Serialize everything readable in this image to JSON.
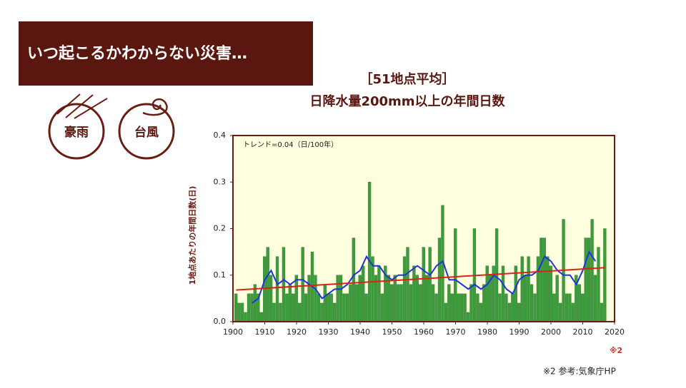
{
  "header": {
    "title": "いつ起こるかわからない災害…"
  },
  "icons": [
    {
      "label": "豪雨"
    },
    {
      "label": "台風"
    }
  ],
  "footnote": "※2  参考:気象庁HP",
  "chart_data": {
    "type": "bar",
    "title": "［51地点平均］",
    "subtitle": "日降水量200mm以上の年間日数",
    "y_label": "1地点あたりの年間日数(日)",
    "annotation": "トレンド=0.04（日/100年）",
    "note": "※2",
    "xlim": [
      1900,
      2020
    ],
    "xticks": [
      1900,
      1910,
      1920,
      1930,
      1940,
      1950,
      1960,
      1970,
      1980,
      1990,
      2000,
      2010,
      2020
    ],
    "ylim": [
      0,
      0.4
    ],
    "yticks": [
      {
        "value": 0,
        "label": "0.0"
      },
      0.1,
      0.2,
      0.3,
      0.4
    ],
    "series": [
      {
        "type": "bar",
        "color": "#3c9c3c",
        "x": [
          1901,
          1902,
          1903,
          1904,
          1905,
          1906,
          1907,
          1908,
          1909,
          1910,
          1911,
          1912,
          1913,
          1914,
          1915,
          1916,
          1917,
          1918,
          1919,
          1920,
          1921,
          1922,
          1923,
          1924,
          1925,
          1926,
          1927,
          1928,
          1929,
          1930,
          1931,
          1932,
          1933,
          1934,
          1935,
          1936,
          1937,
          1938,
          1939,
          1940,
          1941,
          1942,
          1943,
          1944,
          1945,
          1946,
          1947,
          1948,
          1949,
          1950,
          1951,
          1952,
          1953,
          1954,
          1955,
          1956,
          1957,
          1958,
          1959,
          1960,
          1961,
          1962,
          1963,
          1964,
          1965,
          1966,
          1967,
          1968,
          1969,
          1970,
          1971,
          1972,
          1973,
          1974,
          1975,
          1976,
          1977,
          1978,
          1979,
          1980,
          1981,
          1982,
          1983,
          1984,
          1985,
          1986,
          1987,
          1988,
          1989,
          1990,
          1991,
          1992,
          1993,
          1994,
          1995,
          1996,
          1997,
          1998,
          1999,
          2000,
          2001,
          2002,
          2003,
          2004,
          2005,
          2006,
          2007,
          2008,
          2009,
          2010,
          2011,
          2012,
          2013,
          2014,
          2015,
          2016,
          2017
        ],
        "values": [
          0.06,
          0.04,
          0.04,
          0.02,
          0.06,
          0.06,
          0.08,
          0.06,
          0.02,
          0.14,
          0.16,
          0.1,
          0.04,
          0.14,
          0.04,
          0.16,
          0.06,
          0.08,
          0.06,
          0.1,
          0.04,
          0.16,
          0.06,
          0.1,
          0.15,
          0.1,
          0.06,
          0.04,
          0.08,
          0.06,
          0.06,
          0.04,
          0.1,
          0.1,
          0.06,
          0.06,
          0.08,
          0.18,
          0.08,
          0.1,
          0.12,
          0.06,
          0.3,
          0.14,
          0.1,
          0.12,
          0.06,
          0.12,
          0.1,
          0.08,
          0.1,
          0.08,
          0.08,
          0.14,
          0.16,
          0.08,
          0.12,
          0.1,
          0.08,
          0.16,
          0.1,
          0.16,
          0.08,
          0.06,
          0.18,
          0.25,
          0.04,
          0.08,
          0.06,
          0.2,
          0.06,
          0.06,
          0.06,
          0.02,
          0.08,
          0.2,
          0.06,
          0.04,
          0.08,
          0.12,
          0.1,
          0.12,
          0.2,
          0.06,
          0.12,
          0.06,
          0.04,
          0.06,
          0.12,
          0.04,
          0.14,
          0.1,
          0.14,
          0.08,
          0.06,
          0.14,
          0.18,
          0.18,
          0.14,
          0.12,
          0.06,
          0.1,
          0.04,
          0.22,
          0.06,
          0.06,
          0.04,
          0.1,
          0.08,
          0.06,
          0.18,
          0.18,
          0.22,
          0.1,
          0.16,
          0.04,
          0.2
        ]
      },
      {
        "type": "line",
        "color": "#2233dd",
        "x": [
          1906,
          1908,
          1910,
          1912,
          1914,
          1916,
          1918,
          1920,
          1922,
          1924,
          1926,
          1928,
          1930,
          1932,
          1934,
          1936,
          1938,
          1940,
          1942,
          1944,
          1946,
          1948,
          1950,
          1952,
          1954,
          1956,
          1958,
          1960,
          1962,
          1964,
          1966,
          1968,
          1970,
          1972,
          1974,
          1976,
          1978,
          1980,
          1982,
          1984,
          1986,
          1988,
          1990,
          1992,
          1994,
          1996,
          1998,
          2000,
          2002,
          2004,
          2006,
          2008,
          2010,
          2012,
          2014
        ],
        "values": [
          0.04,
          0.05,
          0.09,
          0.11,
          0.08,
          0.09,
          0.08,
          0.09,
          0.09,
          0.08,
          0.07,
          0.05,
          0.06,
          0.07,
          0.07,
          0.08,
          0.1,
          0.11,
          0.14,
          0.12,
          0.12,
          0.1,
          0.09,
          0.1,
          0.1,
          0.11,
          0.12,
          0.11,
          0.1,
          0.12,
          0.13,
          0.09,
          0.09,
          0.08,
          0.07,
          0.08,
          0.07,
          0.08,
          0.1,
          0.09,
          0.07,
          0.06,
          0.09,
          0.1,
          0.1,
          0.11,
          0.14,
          0.13,
          0.11,
          0.1,
          0.1,
          0.08,
          0.11,
          0.15,
          0.13
        ]
      },
      {
        "type": "line",
        "color": "#dd2211",
        "x": [
          1901,
          2017
        ],
        "values": [
          0.068,
          0.116
        ]
      }
    ]
  }
}
